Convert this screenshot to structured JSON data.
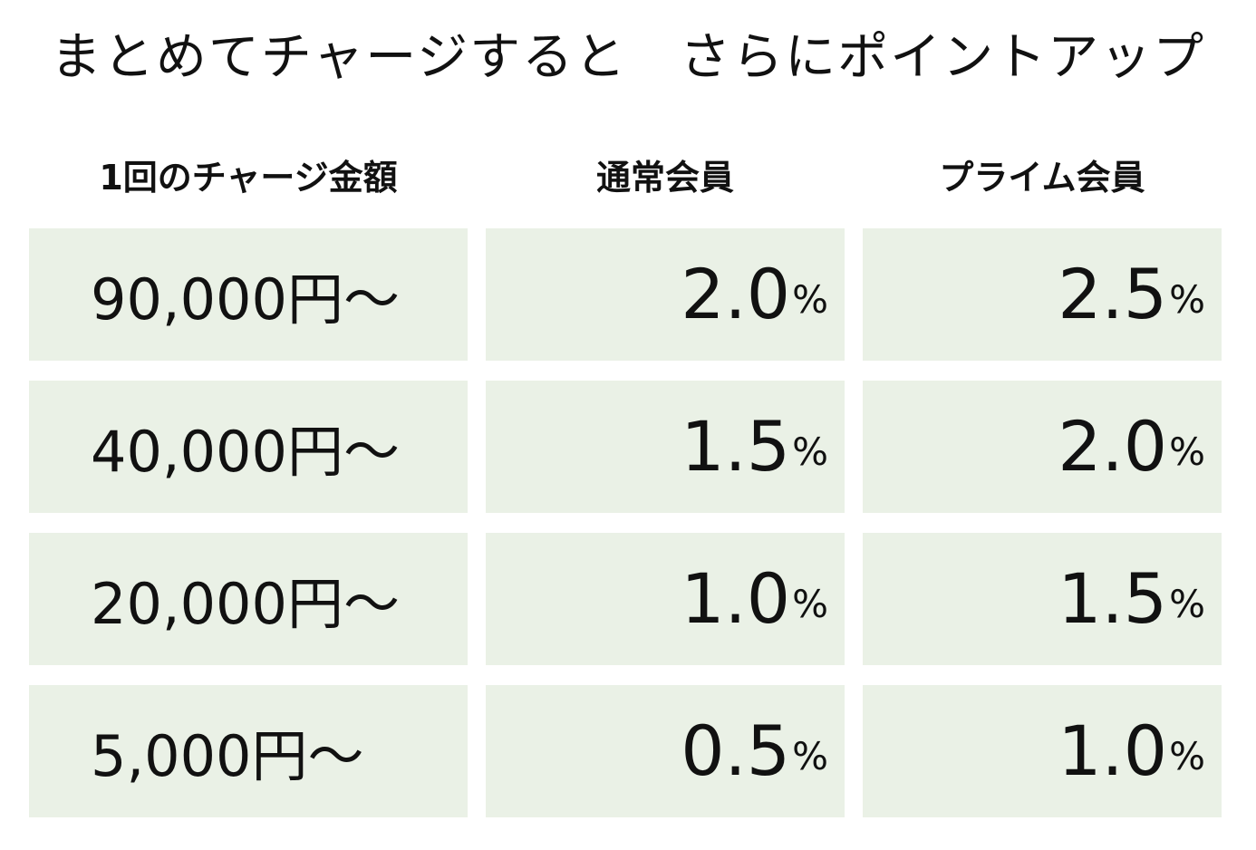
{
  "title": "まとめてチャージすると　さらにポイントアップ",
  "colors": {
    "cell_background": "#eaf1e6",
    "text": "#111111"
  },
  "table": {
    "headers": [
      "1回のチャージ金額",
      "通常会員",
      "プライム会員"
    ],
    "rows": [
      {
        "amount": "90,000円〜",
        "regular": "2.0",
        "prime": "2.5"
      },
      {
        "amount": "40,000円〜",
        "regular": "1.5",
        "prime": "2.0"
      },
      {
        "amount": "20,000円〜",
        "regular": "1.0",
        "prime": "1.5"
      },
      {
        "amount": "5,000円〜",
        "regular": "0.5",
        "prime": "1.0"
      }
    ],
    "percent_unit": "%"
  }
}
